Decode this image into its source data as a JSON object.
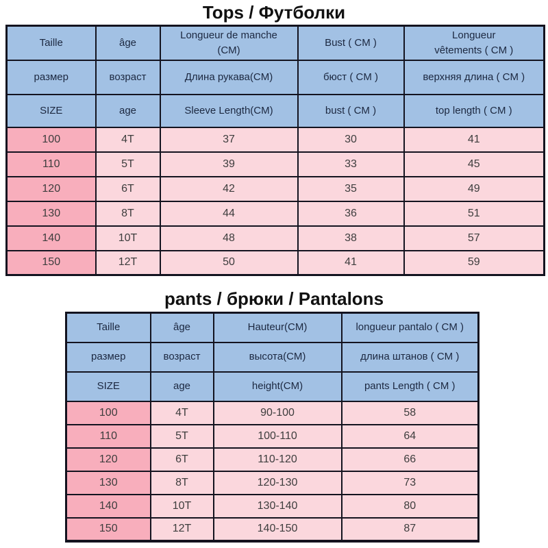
{
  "page": {
    "background": "#ffffff"
  },
  "colors": {
    "header_bg": "#a2c1e4",
    "size_col_bg": "#f8aebc",
    "cell_bg": "#fbd7dd",
    "border": "#13131f",
    "header_text": "#1c2840",
    "cell_text": "#3d3d3d",
    "title_text": "#111111"
  },
  "tables": [
    {
      "title": "Tops / Футболки",
      "header_rows": [
        [
          "Taille",
          "âge",
          "Longueur de manche\n(CM)",
          "Bust ( CM )",
          "Longueur\nvêtements ( CM )"
        ],
        [
          "размер",
          "возраст",
          "Длина рукава(CM)",
          "бюст ( CM )",
          "верхняя длина ( CM )"
        ],
        [
          "SIZE",
          "age",
          "Sleeve Length(CM)",
          "bust ( CM )",
          "top length ( CM )"
        ]
      ],
      "rows": [
        [
          "100",
          "4T",
          "37",
          "30",
          "41"
        ],
        [
          "110",
          "5T",
          "39",
          "33",
          "45"
        ],
        [
          "120",
          "6T",
          "42",
          "35",
          "49"
        ],
        [
          "130",
          "8T",
          "44",
          "36",
          "51"
        ],
        [
          "140",
          "10T",
          "48",
          "38",
          "57"
        ],
        [
          "150",
          "12T",
          "50",
          "41",
          "59"
        ]
      ]
    },
    {
      "title": "pants / брюки / Pantalons",
      "header_rows": [
        [
          "Taille",
          "âge",
          "Hauteur(CM)",
          "longueur pantalo ( CM )"
        ],
        [
          "размер",
          "возраст",
          "высота(CM)",
          "длина штанов ( CM )"
        ],
        [
          "SIZE",
          "age",
          "height(CM)",
          "pants Length ( CM )"
        ]
      ],
      "rows": [
        [
          "100",
          "4T",
          "90-100",
          "58"
        ],
        [
          "110",
          "5T",
          "100-110",
          "64"
        ],
        [
          "120",
          "6T",
          "110-120",
          "66"
        ],
        [
          "130",
          "8T",
          "120-130",
          "73"
        ],
        [
          "140",
          "10T",
          "130-140",
          "80"
        ],
        [
          "150",
          "12T",
          "140-150",
          "87"
        ]
      ]
    }
  ]
}
